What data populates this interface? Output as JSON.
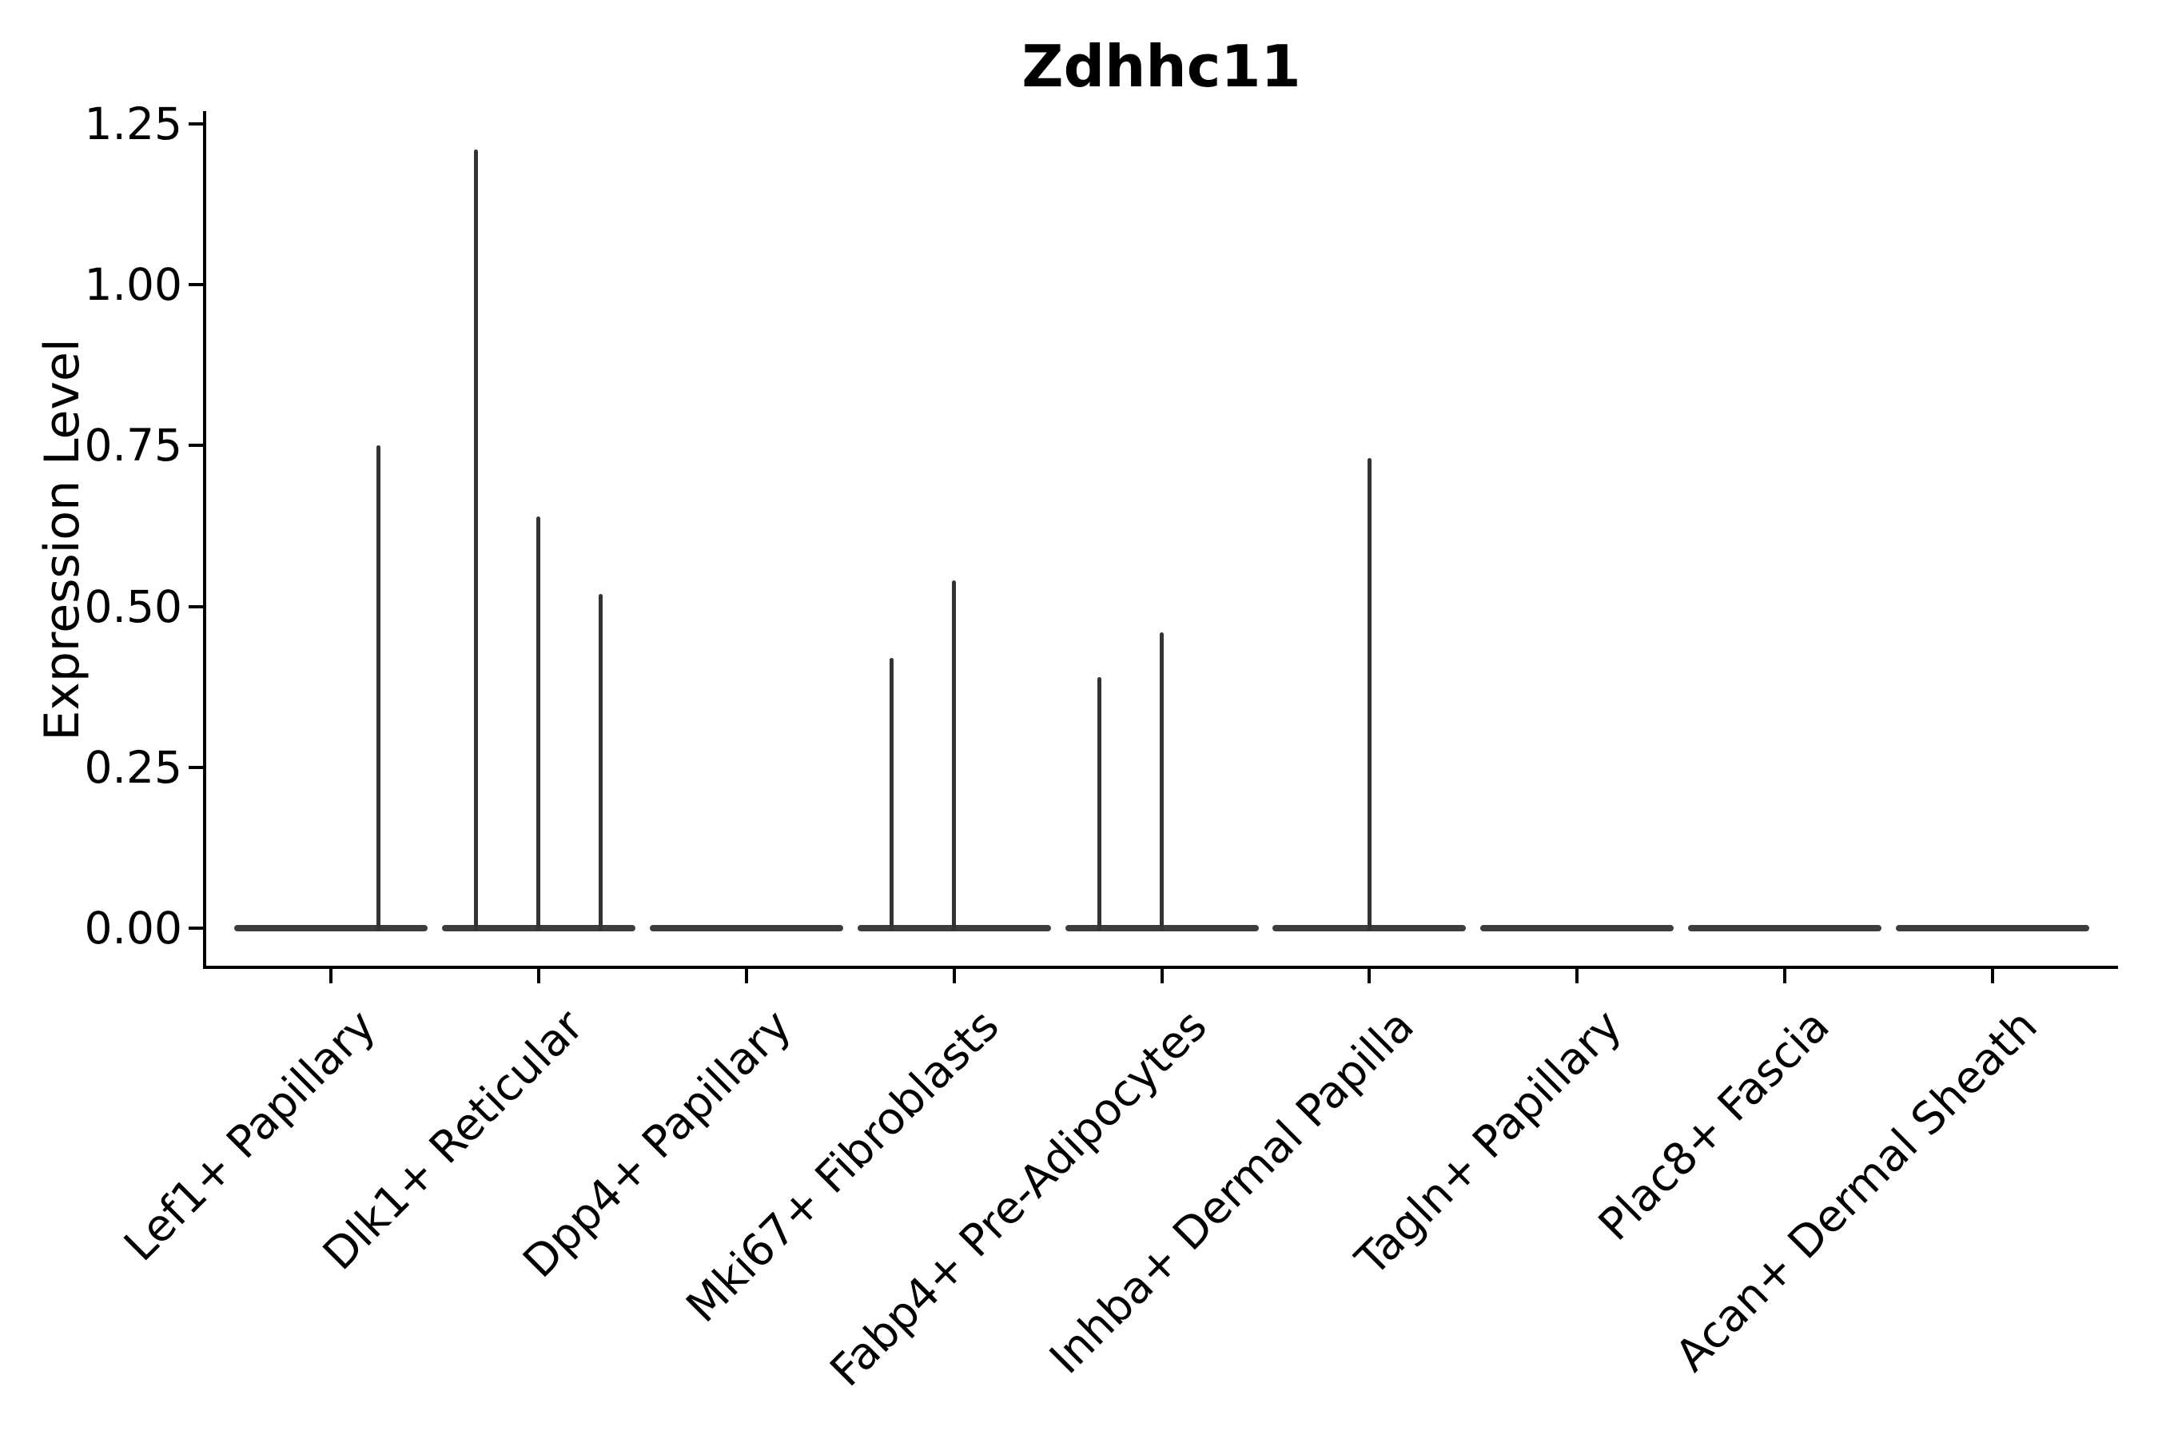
{
  "figure": {
    "title": "Zdhhc11",
    "ylabel": "Expression Level",
    "background": "#ffffff",
    "colors": {
      "spine": "#000000",
      "text": "#000000",
      "violin_body": "#3d3d3d",
      "violin_spike": "#333333"
    }
  },
  "chart_data": {
    "type": "violin",
    "title": "Zdhhc11",
    "xlabel": "",
    "ylabel": "Expression Level",
    "ylim": [
      -0.06,
      1.27
    ],
    "grid": false,
    "legend": null,
    "yticks": [
      0,
      0.25,
      0.5,
      0.75,
      1.0,
      1.25
    ],
    "ytick_labels": [
      "0.00",
      "0.25",
      "0.50",
      "0.75",
      "1.00",
      "1.25"
    ],
    "categories": [
      "Lef1+ Papillary",
      "Dlk1+ Reticular",
      "Dpp4+ Papillary",
      "Mki67+ Fibroblasts",
      "Fabp4+ Pre-Adipocytes",
      "Inhba+ Dermal Papilla",
      "Tagln+ Papillary",
      "Plac8+ Fascia",
      "Acan+ Dermal Sheath"
    ],
    "series": [
      {
        "name": "Lef1+ Papillary",
        "baseline_value": 0,
        "spikes": [
          {
            "offset": 0.23,
            "value": 0.75
          }
        ]
      },
      {
        "name": "Dlk1+ Reticular",
        "baseline_value": 0,
        "spikes": [
          {
            "offset": -0.3,
            "value": 1.21
          },
          {
            "offset": 0.0,
            "value": 0.64
          },
          {
            "offset": 0.3,
            "value": 0.52
          }
        ]
      },
      {
        "name": "Dpp4+ Papillary",
        "baseline_value": 0,
        "spikes": []
      },
      {
        "name": "Mki67+ Fibroblasts",
        "baseline_value": 0,
        "spikes": [
          {
            "offset": -0.3,
            "value": 0.42
          },
          {
            "offset": 0.0,
            "value": 0.54
          }
        ]
      },
      {
        "name": "Fabp4+ Pre-Adipocytes",
        "baseline_value": 0,
        "spikes": [
          {
            "offset": -0.3,
            "value": 0.39
          },
          {
            "offset": 0.0,
            "value": 0.46
          }
        ]
      },
      {
        "name": "Inhba+ Dermal Papilla",
        "baseline_value": 0,
        "spikes": [
          {
            "offset": 0.0,
            "value": 0.73
          }
        ]
      },
      {
        "name": "Tagln+ Papillary",
        "baseline_value": 0,
        "spikes": []
      },
      {
        "name": "Plac8+ Fascia",
        "baseline_value": 0,
        "spikes": []
      },
      {
        "name": "Acan+ Dermal Sheath",
        "baseline_value": 0,
        "spikes": []
      }
    ]
  }
}
